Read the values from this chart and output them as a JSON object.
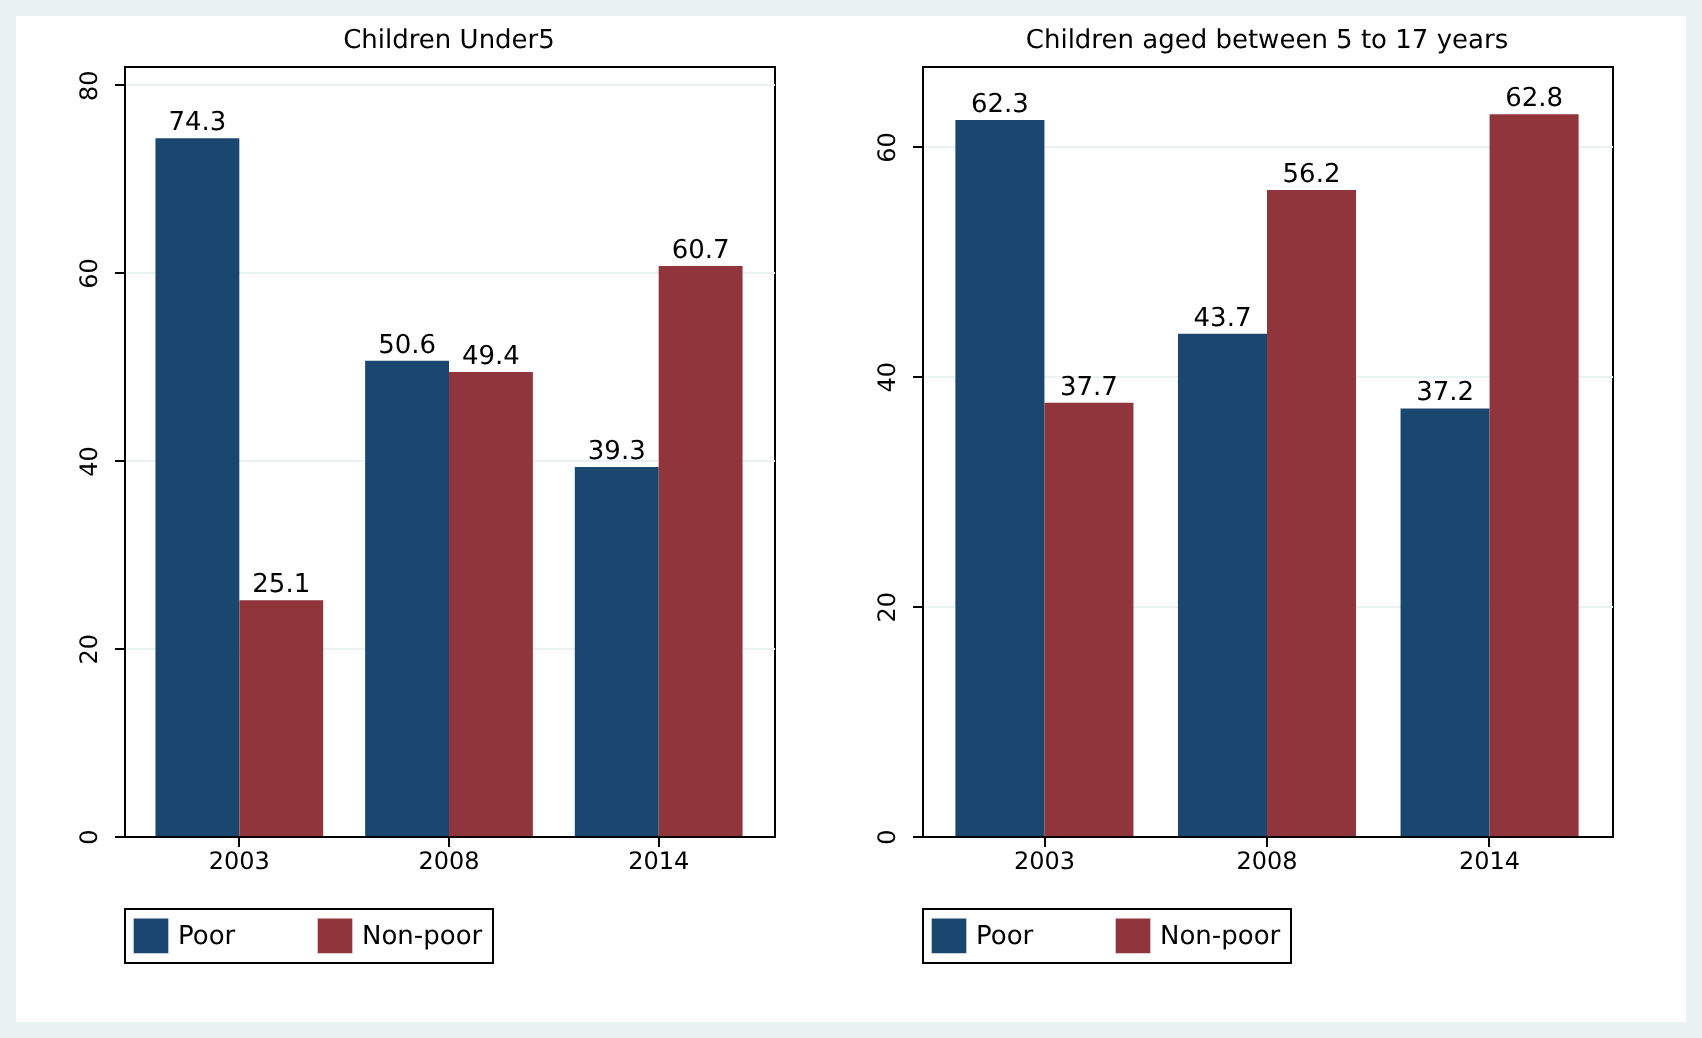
{
  "chart_data": [
    {
      "type": "bar",
      "title": "Children Under5",
      "categories": [
        "2003",
        "2008",
        "2014"
      ],
      "series": [
        {
          "name": "Poor",
          "color": "#1a476f",
          "values": [
            74.3,
            50.6,
            39.3
          ]
        },
        {
          "name": "Non-poor",
          "color": "#90353b",
          "values": [
            25.1,
            49.4,
            60.7
          ]
        }
      ],
      "ylim": [
        0,
        82
      ],
      "yticks": [
        0,
        20,
        40,
        60,
        80
      ],
      "grid": "y",
      "data_labels": true,
      "legend": "bottom"
    },
    {
      "type": "bar",
      "title": "Children aged between 5 to 17 years",
      "categories": [
        "2003",
        "2008",
        "2014"
      ],
      "series": [
        {
          "name": "Poor",
          "color": "#1a476f",
          "values": [
            62.3,
            43.7,
            37.2
          ]
        },
        {
          "name": "Non-poor",
          "color": "#90353b",
          "values": [
            37.7,
            56.2,
            62.8
          ]
        }
      ],
      "ylim": [
        0,
        67
      ],
      "yticks": [
        0,
        20,
        40,
        60
      ],
      "grid": "y",
      "data_labels": true,
      "legend": "bottom"
    }
  ]
}
